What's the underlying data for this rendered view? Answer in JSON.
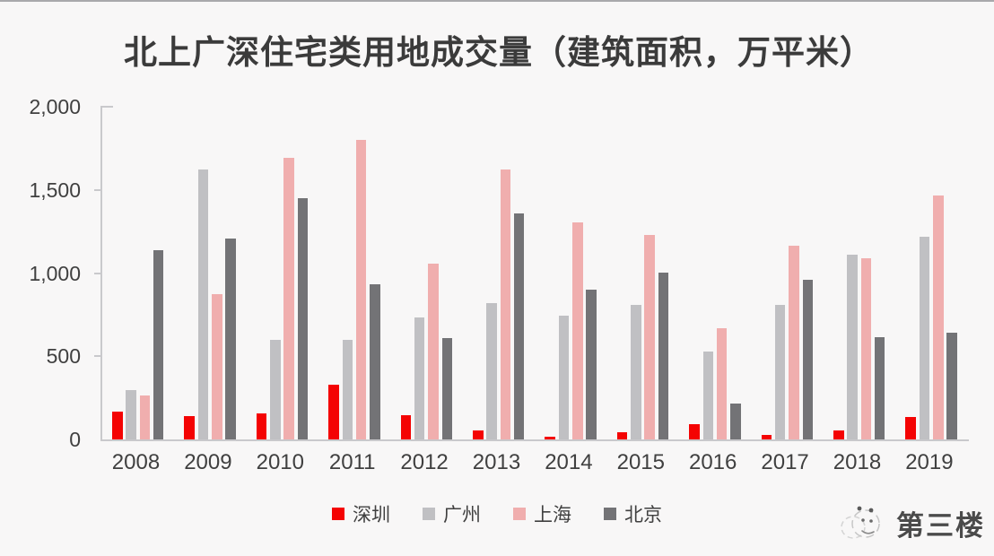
{
  "title": "北上广深住宅类用地成交量（建筑面积，万平米）",
  "watermark": {
    "text": "第三楼",
    "icon": "sketch-panda-logo-icon"
  },
  "colors": {
    "shenzhen": "#f40303",
    "guangzhou": "#c0c0c3",
    "shanghai": "#f0aeae",
    "beijing": "#737376",
    "background": "#f8f7f7",
    "axis": "#c9c9cc",
    "text": "#404040"
  },
  "legend": [
    {
      "label": "深圳",
      "color": "#f40303"
    },
    {
      "label": "广州",
      "color": "#c0c0c3"
    },
    {
      "label": "上海",
      "color": "#f0aeae"
    },
    {
      "label": "北京",
      "color": "#737376"
    }
  ],
  "chart_data": {
    "type": "bar",
    "title": "北上广深住宅类用地成交量（建筑面积，万平米）",
    "categories": [
      "2008",
      "2009",
      "2010",
      "2011",
      "2012",
      "2013",
      "2014",
      "2015",
      "2016",
      "2017",
      "2018",
      "2019"
    ],
    "series": [
      {
        "name": "深圳",
        "color": "#f40303",
        "values": [
          165,
          140,
          155,
          330,
          145,
          55,
          15,
          45,
          90,
          25,
          55,
          135
        ]
      },
      {
        "name": "广州",
        "color": "#c0c0c3",
        "values": [
          295,
          1620,
          600,
          600,
          735,
          820,
          745,
          810,
          530,
          810,
          1110,
          1220
        ]
      },
      {
        "name": "上海",
        "color": "#f0aeae",
        "values": [
          265,
          875,
          1695,
          1800,
          1055,
          1620,
          1305,
          1230,
          670,
          1165,
          1090,
          1465
        ]
      },
      {
        "name": "北京",
        "color": "#737376",
        "values": [
          1140,
          1210,
          1450,
          930,
          610,
          1360,
          900,
          1005,
          215,
          960,
          615,
          640
        ]
      }
    ],
    "xlabel": "",
    "ylabel": "",
    "ylim": [
      0,
      2000
    ],
    "ytick_labels": [
      "0",
      "500",
      "1,000",
      "1,500",
      "2,000"
    ],
    "grid": false,
    "legend_position": "bottom"
  }
}
